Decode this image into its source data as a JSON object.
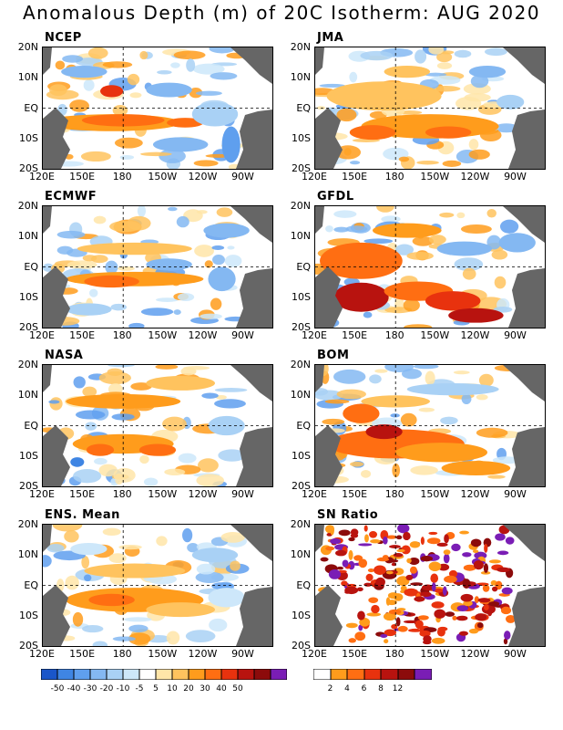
{
  "title": "Anomalous Depth (m) of 20C Isotherm: AUG 2020",
  "panels": [
    {
      "name": "NCEP"
    },
    {
      "name": "JMA"
    },
    {
      "name": "ECMWF"
    },
    {
      "name": "GFDL"
    },
    {
      "name": "NASA"
    },
    {
      "name": "BOM"
    },
    {
      "name": "ENS. Mean"
    },
    {
      "name": "SN Ratio"
    }
  ],
  "y_tick_labels": [
    "20N",
    "10N",
    "EQ",
    "10S",
    "20S"
  ],
  "x_tick_labels": [
    "120E",
    "150E",
    "180",
    "150W",
    "120W",
    "90W"
  ],
  "colorbar_anomaly": {
    "colors": [
      "#1a56c9",
      "#3f85e3",
      "#5f9fee",
      "#84b8f2",
      "#a9d1f5",
      "#cde7fa",
      "#ffffff",
      "#ffe5a8",
      "#ffc35e",
      "#ff9c1c",
      "#ff6e12",
      "#e8320e",
      "#b8130f",
      "#8c0b0b",
      "#7a1db5"
    ],
    "labels": [
      "-50",
      "-40",
      "-30",
      "-20",
      "-10",
      "-5",
      "5",
      "10",
      "20",
      "30",
      "40",
      "50"
    ]
  },
  "colorbar_sn": {
    "colors": [
      "#ffffff",
      "#ff9c1c",
      "#ff6e12",
      "#e8320e",
      "#b8130f",
      "#8c0b0b",
      "#7a1db5"
    ],
    "labels": [
      "2",
      "4",
      "6",
      "8",
      "12"
    ]
  },
  "chart_data": {
    "type": "heatmap",
    "variable": "Anomalous Depth (m) of 20C Isotherm",
    "period": "AUG 2020",
    "lon_range": [
      "120E",
      "80W"
    ],
    "lat_range": [
      "20S",
      "20N"
    ],
    "land_color": "#666666",
    "reference_lines": [
      "EQ",
      "180"
    ],
    "panels": [
      {
        "name": "NCEP",
        "pattern": "positive 10-20 m along 5-10S from 120E to 160W and near 5N 170E; negative -10 to -30 m in central/eastern equatorial band and east of 110W"
      },
      {
        "name": "JMA",
        "pattern": "broad positive 10-30 m over western Pacific and south of equator toward 110W; weak negative patches in east"
      },
      {
        "name": "ECMWF",
        "pattern": "positive 10-20 m bands near 5N and 8S across 140E-120W; negative -5 to -20 m patches north of 10N and in east"
      },
      {
        "name": "GFDL",
        "pattern": "strong positive 20-50 m in western Pacific and 10-20S; negative -10 to -20 m in east north of equator"
      },
      {
        "name": "NASA",
        "pattern": "positive 10-20 m bands near 5N and 5-10S; negative -5 to -10 m near 12N and in east"
      },
      {
        "name": "BOM",
        "pattern": "strong positive 20-40 m along 5-15S from 140E to 100W; negative -10 to -20 m north of 10N"
      },
      {
        "name": "ENS. Mean",
        "pattern": "positive 5-20 m south of equator 140E-110W and near 5N west; weak negative north of 12N and far east"
      },
      {
        "name": "SN Ratio",
        "pattern": "scattered high ratios 4-12+ across western and central Pacific, largest near equator 150E-180 and 10S"
      }
    ]
  }
}
